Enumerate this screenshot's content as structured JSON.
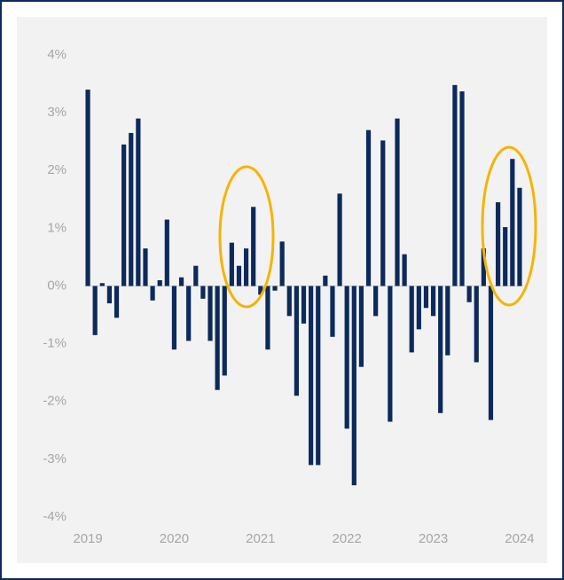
{
  "chart_data": {
    "type": "bar",
    "categories": [
      "2019",
      null,
      null,
      null,
      null,
      null,
      null,
      null,
      null,
      null,
      null,
      null,
      "2020",
      null,
      null,
      null,
      null,
      null,
      null,
      null,
      null,
      null,
      null,
      null,
      "2021",
      null,
      null,
      null,
      null,
      null,
      null,
      null,
      null,
      null,
      null,
      null,
      "2022",
      null,
      null,
      null,
      null,
      null,
      null,
      null,
      null,
      null,
      null,
      null,
      "2023",
      null,
      null,
      null,
      null,
      null,
      null,
      null,
      null,
      null,
      null,
      null,
      "2024"
    ],
    "values": [
      3.4,
      -0.85,
      0.05,
      -0.3,
      -0.55,
      2.45,
      2.65,
      2.9,
      0.65,
      -0.25,
      0.1,
      1.15,
      -1.1,
      0.15,
      -0.95,
      0.35,
      -0.22,
      -0.95,
      -1.8,
      -1.55,
      0.75,
      0.35,
      0.65,
      1.37,
      -0.15,
      -1.1,
      -0.08,
      0.77,
      -0.52,
      -1.9,
      -0.65,
      -3.1,
      -3.1,
      0.18,
      -0.88,
      1.6,
      -2.47,
      -3.45,
      -1.4,
      2.7,
      -0.52,
      2.52,
      -2.35,
      2.9,
      0.55,
      -1.15,
      -0.75,
      -0.38,
      -0.52,
      -2.2,
      -1.2,
      3.48,
      3.37,
      -0.28,
      -1.32,
      0.65,
      -2.32,
      1.45,
      1.02,
      2.2,
      1.7
    ],
    "color": "#0c2a5b",
    "ylim": [
      -4,
      4
    ],
    "yticks": [
      {
        "value": -4,
        "label": "-4%"
      },
      {
        "value": -3,
        "label": "-3%"
      },
      {
        "value": -2,
        "label": "-2%"
      },
      {
        "value": -1,
        "label": "-1%"
      },
      {
        "value": 0,
        "label": "0%"
      },
      {
        "value": 1,
        "label": "1%"
      },
      {
        "value": 2,
        "label": "2%"
      },
      {
        "value": 3,
        "label": "3%"
      },
      {
        "value": 4,
        "label": "4%"
      }
    ],
    "grid": false
  }
}
